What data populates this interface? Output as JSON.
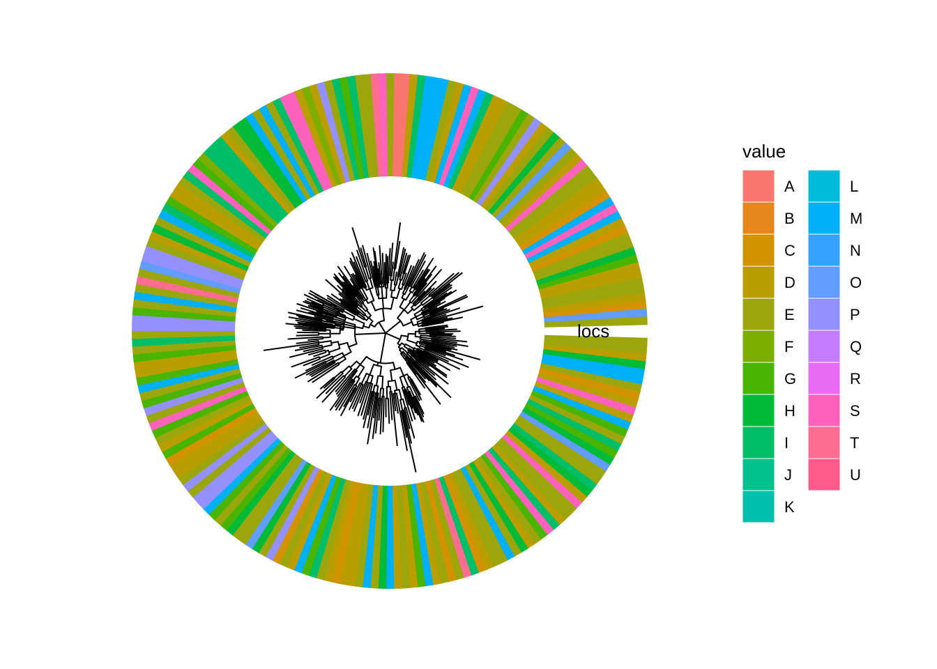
{
  "track_label": "locs",
  "legend": {
    "title": "value",
    "items": [
      {
        "label": "A",
        "color": "#F8766D"
      },
      {
        "label": "B",
        "color": "#E7861B"
      },
      {
        "label": "C",
        "color": "#D39200"
      },
      {
        "label": "D",
        "color": "#BA9E00"
      },
      {
        "label": "E",
        "color": "#9BA60C"
      },
      {
        "label": "F",
        "color": "#7CAE00"
      },
      {
        "label": "G",
        "color": "#49B500"
      },
      {
        "label": "H",
        "color": "#00BA38"
      },
      {
        "label": "I",
        "color": "#00BE67"
      },
      {
        "label": "J",
        "color": "#00C08B"
      },
      {
        "label": "K",
        "color": "#00BFAB"
      },
      {
        "label": "L",
        "color": "#00BCD8"
      },
      {
        "label": "M",
        "color": "#00B0F6"
      },
      {
        "label": "N",
        "color": "#35A2FF"
      },
      {
        "label": "O",
        "color": "#619CFF"
      },
      {
        "label": "P",
        "color": "#9590FF"
      },
      {
        "label": "Q",
        "color": "#C77CFF"
      },
      {
        "label": "R",
        "color": "#E76BF3"
      },
      {
        "label": "S",
        "color": "#FF62BC"
      },
      {
        "label": "T",
        "color": "#FF6C91"
      },
      {
        "label": "U",
        "color": "#FF5A8C"
      }
    ]
  },
  "ring_sequence": [
    "E",
    "E",
    "D",
    "H",
    "M",
    "M",
    "E",
    "C",
    "D",
    "S",
    "D",
    "M",
    "G",
    "E",
    "I",
    "G",
    "H",
    "O",
    "E",
    "E",
    "I",
    "H",
    "D",
    "S",
    "E",
    "E",
    "D",
    "I",
    "S",
    "G",
    "E",
    "D",
    "H",
    "E",
    "M",
    "E",
    "E",
    "D",
    "C",
    "I",
    "T",
    "E",
    "C",
    "E",
    "D",
    "M",
    "G",
    "D",
    "E",
    "D",
    "M",
    "H",
    "E",
    "M",
    "E",
    "D",
    "D",
    "C",
    "D",
    "E",
    "I",
    "G",
    "M",
    "D",
    "E",
    "C",
    "P",
    "E",
    "H",
    "O",
    "E",
    "E",
    "H",
    "G",
    "E",
    "G",
    "M",
    "P",
    "P",
    "E",
    "P",
    "E",
    "D",
    "D",
    "C",
    "G",
    "D",
    "E",
    "G",
    "S",
    "E",
    "P",
    "G",
    "E",
    "M",
    "G",
    "D",
    "D",
    "G",
    "E",
    "I",
    "E",
    "P",
    "P",
    "G",
    "E",
    "M",
    "E",
    "T",
    "E",
    "O",
    "P",
    "P",
    "E",
    "D",
    "H",
    "E",
    "M",
    "I",
    "G",
    "D",
    "D",
    "E",
    "I",
    "S",
    "G",
    "F",
    "I",
    "I",
    "I",
    "D",
    "E",
    "H",
    "H",
    "M",
    "E",
    "M",
    "E",
    "I",
    "S",
    "S",
    "D",
    "F",
    "D",
    "P",
    "E",
    "I",
    "G",
    "I",
    "E",
    "E",
    "T",
    "S",
    "E",
    "A",
    "A",
    "D",
    "I",
    "M",
    "M",
    "M",
    "E",
    "D",
    "M",
    "S",
    "M",
    "I",
    "D",
    "D",
    "E",
    "E",
    "G",
    "E",
    "P",
    "D",
    "E",
    "H",
    "E",
    "O",
    "E",
    "D",
    "S",
    "E",
    "E",
    "D",
    "D",
    "C",
    "M",
    "S",
    "M",
    "D",
    "C",
    "E",
    "E",
    "H",
    "G",
    "D",
    "D",
    "E",
    "E",
    "D",
    "C",
    "O",
    "E"
  ]
}
